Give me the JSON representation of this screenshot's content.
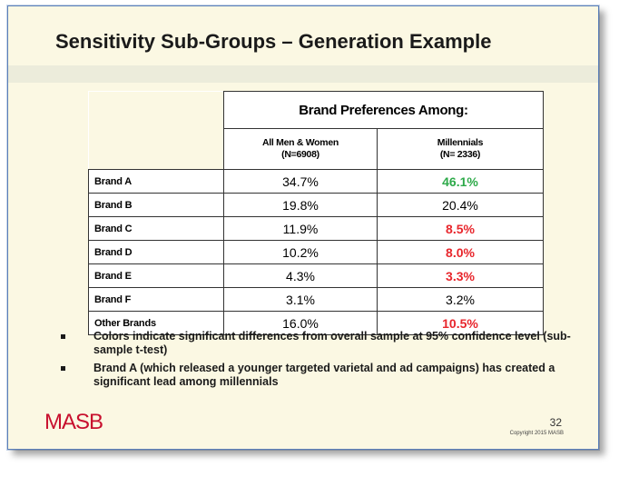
{
  "title": "Sensitivity Sub-Groups – Generation Example",
  "table": {
    "group_header": "Brand Preferences Among:",
    "columns": [
      {
        "line1": "All Men & Women",
        "line2": "(N=6908)"
      },
      {
        "line1": "Millennials",
        "line2": "(N= 2336)"
      }
    ],
    "rows": [
      {
        "brand": "Brand A",
        "all": "34.7%",
        "millennials": "46.1%",
        "status": "higher"
      },
      {
        "brand": "Brand B",
        "all": "19.8%",
        "millennials": "20.4%",
        "status": "none"
      },
      {
        "brand": "Brand C",
        "all": "11.9%",
        "millennials": "8.5%",
        "status": "lower"
      },
      {
        "brand": "Brand D",
        "all": "10.2%",
        "millennials": "8.0%",
        "status": "lower"
      },
      {
        "brand": "Brand E",
        "all": "4.3%",
        "millennials": "3.3%",
        "status": "lower"
      },
      {
        "brand": "Brand F",
        "all": "3.1%",
        "millennials": "3.2%",
        "status": "none"
      },
      {
        "brand": "Other Brands",
        "all": "16.0%",
        "millennials": "10.5%",
        "status": "lower"
      }
    ]
  },
  "colors": {
    "higher": "#2eaa4a",
    "lower": "#e8262c",
    "logo": "#c8102e"
  },
  "bullets": [
    "Colors indicate significant differences from overall sample at 95% confidence level (sub-sample t-test)",
    "Brand A (which released a younger targeted varietal and ad campaigns) has created a significant lead among millennials"
  ],
  "footer": {
    "logo": "MASB",
    "page_number": "32",
    "copyright": "Copyright 2015 MASB"
  }
}
